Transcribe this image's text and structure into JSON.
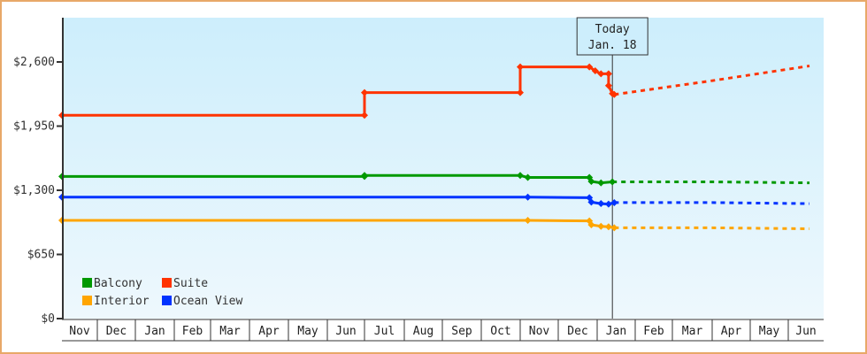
{
  "chart_data": {
    "type": "line",
    "title": "",
    "xlabel": "",
    "ylabel": "",
    "ylim": [
      0,
      3000
    ],
    "y_ticks": [
      {
        "value": 0,
        "label": "$0"
      },
      {
        "value": 650,
        "label": "$650"
      },
      {
        "value": 1300,
        "label": "$1,300"
      },
      {
        "value": 1950,
        "label": "$1,950"
      },
      {
        "value": 2600,
        "label": "$2,600"
      }
    ],
    "x_months": [
      "Nov",
      "Dec",
      "Jan",
      "Feb",
      "Mar",
      "Apr",
      "May",
      "Jun",
      "Jul",
      "Aug",
      "Sep",
      "Oct",
      "Nov",
      "Dec",
      "Jan",
      "Feb",
      "Mar",
      "Apr",
      "May",
      "Jun"
    ],
    "grid": false,
    "legend_position": "bottom-left inside plot",
    "today_marker": {
      "line1": "Today",
      "line2": "Jan. 18",
      "month_index": 14.4
    },
    "series": [
      {
        "name": "Balcony",
        "color": "#009900",
        "historical": [
          {
            "m": 0.0,
            "v": 1440
          },
          {
            "m": 8.0,
            "v": 1440
          },
          {
            "m": 8.0,
            "v": 1450
          },
          {
            "m": 12.0,
            "v": 1450
          },
          {
            "m": 12.2,
            "v": 1430
          },
          {
            "m": 13.8,
            "v": 1430
          },
          {
            "m": 13.85,
            "v": 1390
          },
          {
            "m": 14.1,
            "v": 1375
          },
          {
            "m": 14.4,
            "v": 1385
          }
        ],
        "forecast": [
          {
            "m": 14.4,
            "v": 1385
          },
          {
            "m": 17.0,
            "v": 1385
          },
          {
            "m": 19.6,
            "v": 1375
          }
        ]
      },
      {
        "name": "Suite",
        "color": "#ff3300",
        "historical": [
          {
            "m": 0.0,
            "v": 2060
          },
          {
            "m": 8.0,
            "v": 2060
          },
          {
            "m": 8.0,
            "v": 2290
          },
          {
            "m": 12.0,
            "v": 2290
          },
          {
            "m": 12.0,
            "v": 2550
          },
          {
            "m": 13.8,
            "v": 2550
          },
          {
            "m": 13.95,
            "v": 2510
          },
          {
            "m": 14.1,
            "v": 2480
          },
          {
            "m": 14.3,
            "v": 2480
          },
          {
            "m": 14.3,
            "v": 2360
          },
          {
            "m": 14.4,
            "v": 2280
          },
          {
            "m": 14.45,
            "v": 2270
          }
        ],
        "forecast": [
          {
            "m": 14.45,
            "v": 2270
          },
          {
            "m": 17.0,
            "v": 2410
          },
          {
            "m": 19.6,
            "v": 2560
          }
        ]
      },
      {
        "name": "Interior",
        "color": "#ffa500",
        "historical": [
          {
            "m": 0.0,
            "v": 995
          },
          {
            "m": 12.2,
            "v": 995
          },
          {
            "m": 13.8,
            "v": 990
          },
          {
            "m": 13.85,
            "v": 950
          },
          {
            "m": 14.1,
            "v": 935
          },
          {
            "m": 14.3,
            "v": 930
          },
          {
            "m": 14.45,
            "v": 920
          }
        ],
        "forecast": [
          {
            "m": 14.45,
            "v": 920
          },
          {
            "m": 17.0,
            "v": 920
          },
          {
            "m": 19.6,
            "v": 910
          }
        ]
      },
      {
        "name": "Ocean View",
        "color": "#0033ff",
        "historical": [
          {
            "m": 0.0,
            "v": 1230
          },
          {
            "m": 12.2,
            "v": 1230
          },
          {
            "m": 13.8,
            "v": 1225
          },
          {
            "m": 13.85,
            "v": 1180
          },
          {
            "m": 14.1,
            "v": 1165
          },
          {
            "m": 14.3,
            "v": 1160
          },
          {
            "m": 14.45,
            "v": 1175
          }
        ],
        "forecast": [
          {
            "m": 14.45,
            "v": 1175
          },
          {
            "m": 17.0,
            "v": 1175
          },
          {
            "m": 19.6,
            "v": 1165
          }
        ]
      }
    ]
  },
  "legend": [
    {
      "name": "Balcony",
      "color": "#009900"
    },
    {
      "name": "Suite",
      "color": "#ff3300"
    },
    {
      "name": "Interior",
      "color": "#ffa500"
    },
    {
      "name": "Ocean View",
      "color": "#0033ff"
    }
  ],
  "colors": {
    "frame_border": "#e8a868",
    "plot_top": "#cdeefc",
    "plot_bottom": "#eef8fd",
    "axis": "#333333"
  }
}
